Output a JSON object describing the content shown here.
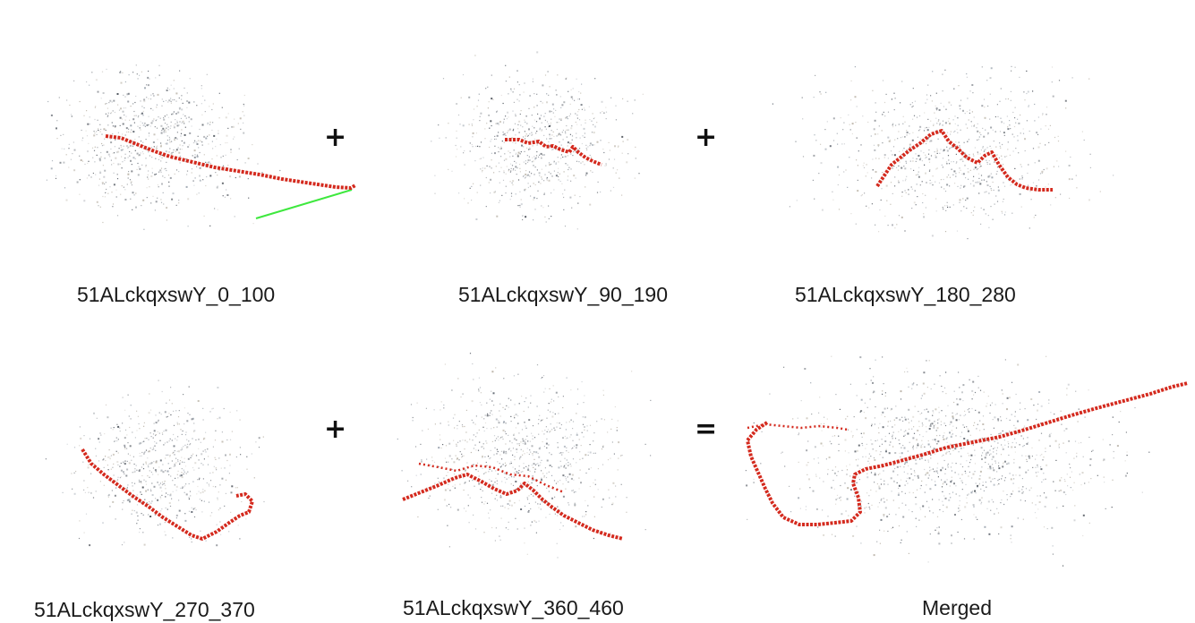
{
  "panels": [
    {
      "caption": "51ALckqxswY_0_100"
    },
    {
      "caption": "51ALckqxswY_90_190"
    },
    {
      "caption": "51ALckqxswY_180_280"
    },
    {
      "caption": "51ALckqxswY_270_370"
    },
    {
      "caption": "51ALckqxswY_360_460"
    },
    {
      "caption": "Merged"
    }
  ],
  "operators": {
    "plus": "+",
    "equals": "="
  },
  "colors": {
    "trajectory": "#d42a1e",
    "direction_line": "#3ee83e",
    "points": "#7a7f86"
  }
}
